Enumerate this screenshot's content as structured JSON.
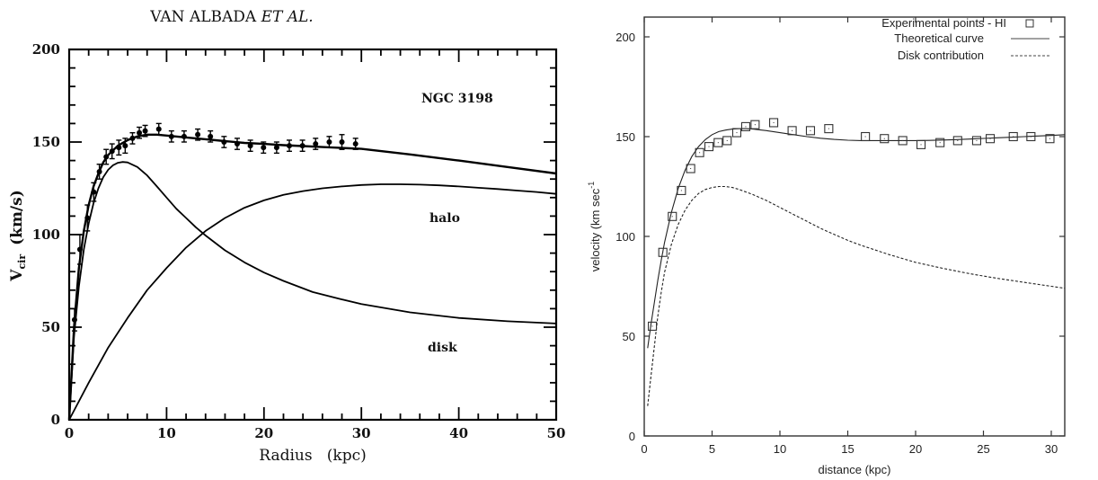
{
  "chart_data": [
    {
      "type": "line",
      "header": "VAN ALBADA ET AL.",
      "header_parts": [
        "VAN ALBADA ",
        "ET AL."
      ],
      "title": "NGC 3198",
      "xlabel": "Radius   (kpc)",
      "ylabel_main": "V",
      "ylabel_sub": "cir",
      "ylabel_units": "(km/s)",
      "xlim": [
        0,
        50
      ],
      "ylim": [
        0,
        200
      ],
      "xticks": [
        0,
        10,
        20,
        30,
        40,
        50
      ],
      "xtick_labels": [
        "0",
        "10",
        "20",
        "30",
        "40",
        "50"
      ],
      "yticks": [
        0,
        50,
        100,
        150,
        200
      ],
      "ytick_labels": [
        "0",
        "50",
        "100",
        "150",
        "200"
      ],
      "x_minor_step": 2,
      "y_minor_step": 10,
      "grid": false,
      "annotations": [
        {
          "text": "halo",
          "x": 37,
          "y": 110
        },
        {
          "text": "disk",
          "x": 37,
          "y": 40
        }
      ],
      "points": {
        "name": "observed",
        "x": [
          0.55,
          1.1,
          1.87,
          2.52,
          3.1,
          3.8,
          4.4,
          5.1,
          5.75,
          6.5,
          7.2,
          7.8,
          9.2,
          10.5,
          11.8,
          13.2,
          14.5,
          15.9,
          17.25,
          18.6,
          19.95,
          21.3,
          22.6,
          23.95,
          25.3,
          26.7,
          28.0,
          29.4
        ],
        "y": [
          54,
          92,
          109,
          123,
          134,
          142,
          145,
          147,
          148,
          152,
          155,
          156,
          157,
          153,
          153,
          154,
          153,
          150,
          149,
          148,
          147,
          147,
          148,
          148,
          149,
          150,
          150,
          149
        ],
        "err": [
          6,
          8,
          7,
          5,
          4,
          4,
          4,
          4,
          4,
          3,
          3,
          3,
          3,
          3,
          3,
          3,
          3,
          3,
          3,
          3,
          3,
          3,
          3,
          3,
          3,
          3,
          4,
          3
        ]
      },
      "series": [
        {
          "name": "total",
          "x": [
            0,
            0.5,
            1,
            1.5,
            2,
            2.5,
            3,
            3.5,
            4,
            5,
            6,
            7,
            8,
            9,
            10,
            12,
            14,
            16,
            18,
            20,
            22,
            24,
            26,
            28,
            30,
            35,
            40,
            45,
            50
          ],
          "y": [
            0,
            50,
            82,
            102,
            116,
            126,
            133,
            139,
            143,
            148,
            151,
            153,
            154,
            154,
            153.5,
            152.5,
            151.5,
            150.5,
            149.5,
            149,
            148.3,
            147.8,
            147.3,
            146.8,
            146.3,
            143.3,
            140,
            136.5,
            133
          ]
        },
        {
          "name": "disk",
          "x": [
            0,
            0.5,
            1,
            1.5,
            2,
            2.5,
            3,
            3.5,
            4,
            4.5,
            5,
            5.5,
            6,
            7,
            8,
            9,
            10,
            11,
            12,
            13,
            14,
            16,
            18,
            20,
            22,
            25,
            28,
            30,
            35,
            40,
            45,
            50
          ],
          "y": [
            0,
            45,
            72,
            92,
            106,
            117,
            125,
            131,
            135,
            137.5,
            138.8,
            139.2,
            139,
            136.5,
            132,
            126,
            120,
            114,
            109,
            104,
            99.5,
            91.5,
            85,
            79.5,
            75,
            69,
            65,
            62.5,
            58,
            55,
            53.2,
            52
          ]
        },
        {
          "name": "halo",
          "x": [
            0,
            2,
            4,
            6,
            8,
            10,
            12,
            14,
            16,
            18,
            20,
            22,
            24,
            26,
            28,
            30,
            32,
            34,
            36,
            38,
            40,
            42,
            44,
            46,
            48,
            50
          ],
          "y": [
            0,
            20,
            39,
            55,
            70,
            82,
            93,
            102,
            109,
            114.5,
            118.5,
            121.5,
            123.5,
            125,
            126,
            126.8,
            127.2,
            127.2,
            127,
            126.6,
            126,
            125.3,
            124.6,
            123.8,
            123,
            122
          ]
        }
      ]
    },
    {
      "type": "line",
      "xlabel": "distance (kpc)",
      "ylabel": "velocity (km sec",
      "ylabel_sup": "-1",
      "xlim": [
        0,
        31
      ],
      "ylim": [
        0,
        211
      ],
      "xticks": [
        0,
        5,
        10,
        15,
        20,
        25,
        30
      ],
      "xtick_labels": [
        "0",
        "5",
        "10",
        "15",
        "20",
        "25",
        "30"
      ],
      "yticks": [
        0,
        50,
        100,
        150,
        200
      ],
      "ytick_labels": [
        "0",
        "50",
        "100",
        "150",
        "200"
      ],
      "grid": false,
      "legend_position": "top-right",
      "legend": [
        {
          "label": "Experimental points - HI",
          "style": "square"
        },
        {
          "label": "Theoretical curve",
          "style": "solid"
        },
        {
          "label": "Disk contribution",
          "style": "dashed"
        }
      ],
      "points": {
        "name": "Experimental points - HI",
        "x": [
          0.6,
          1.37,
          2.07,
          2.74,
          3.42,
          4.08,
          4.77,
          5.45,
          6.11,
          6.82,
          7.48,
          8.17,
          9.54,
          10.9,
          12.25,
          13.6,
          16.3,
          17.7,
          19.05,
          20.4,
          21.8,
          23.1,
          24.5,
          25.5,
          27.2,
          28.5,
          29.9
        ],
        "y": [
          55,
          92,
          110,
          123,
          134,
          142,
          145,
          147,
          148,
          152,
          155,
          156,
          157,
          153,
          153,
          154,
          150,
          149,
          148,
          146,
          147,
          148,
          148,
          149,
          150,
          150,
          149
        ]
      },
      "series": [
        {
          "name": "Theoretical curve",
          "x": [
            0.25,
            0.5,
            0.75,
            1,
            1.25,
            1.5,
            2,
            2.5,
            3,
            3.5,
            4,
            4.5,
            5,
            5.5,
            6,
            6.5,
            7,
            7.5,
            8,
            9,
            10,
            11,
            12,
            13,
            14,
            15,
            16,
            17,
            18,
            19,
            20,
            21,
            22,
            23,
            24,
            25,
            26,
            27,
            28,
            29,
            30,
            31
          ],
          "y": [
            44,
            56,
            67,
            78,
            88,
            97,
            112,
            124,
            133,
            140,
            145,
            148.5,
            151,
            152.5,
            153.3,
            153.8,
            154,
            154,
            153.8,
            153,
            152,
            151,
            150,
            149.2,
            148.6,
            148.2,
            148,
            148,
            148,
            148,
            148,
            148.1,
            148.3,
            148.5,
            148.8,
            149.1,
            149.4,
            149.7,
            150,
            150.3,
            150.6,
            151
          ]
        },
        {
          "name": "Disk contribution",
          "x": [
            0.25,
            0.5,
            0.75,
            1,
            1.25,
            1.5,
            2,
            2.5,
            3,
            3.5,
            4,
            4.5,
            5,
            5.5,
            6,
            6.5,
            7,
            8,
            9,
            10,
            11,
            12,
            13,
            14,
            15,
            16,
            18,
            20,
            22,
            24,
            26,
            28,
            30,
            31
          ],
          "y": [
            15,
            30,
            45,
            60,
            72,
            82,
            96,
            106,
            113,
            118,
            121.5,
            123.5,
            124.5,
            125,
            125,
            124.5,
            123.5,
            121,
            118,
            114.5,
            111,
            107.5,
            104,
            101,
            98,
            95.5,
            91,
            87,
            84,
            81.3,
            79,
            77,
            75,
            74
          ]
        }
      ]
    }
  ]
}
